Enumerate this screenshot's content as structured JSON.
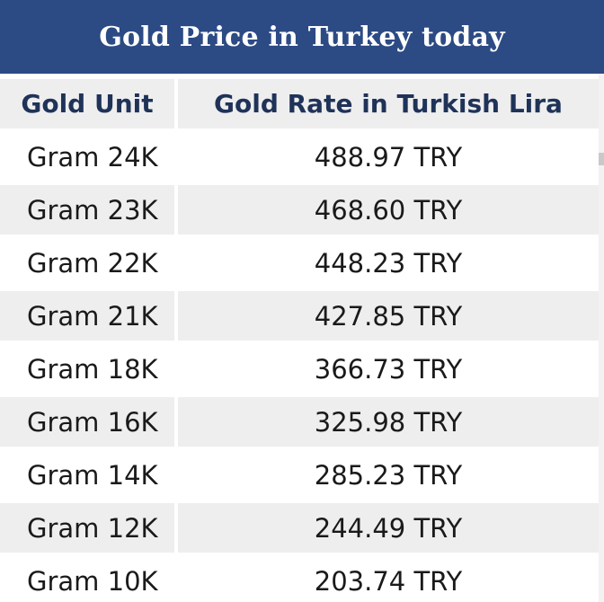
{
  "title": "Gold Price in Turkey today",
  "table": {
    "headers": [
      "Gold Unit",
      "Gold Rate in Turkish Lira"
    ],
    "rows": [
      [
        "Gram 24K",
        "488.97 TRY"
      ],
      [
        "Gram 23K",
        "468.60 TRY"
      ],
      [
        "Gram 22K",
        "448.23 TRY"
      ],
      [
        "Gram 21K",
        "427.85 TRY"
      ],
      [
        "Gram 18K",
        "366.73 TRY"
      ],
      [
        "Gram 16K",
        "325.98 TRY"
      ],
      [
        "Gram 14K",
        "285.23 TRY"
      ],
      [
        "Gram 12K",
        "244.49 TRY"
      ],
      [
        "Gram 10K",
        "203.74 TRY"
      ]
    ]
  },
  "colors": {
    "header_bar": "#2c4a84",
    "header_text": "#1f3359",
    "stripe": "#eeeeee"
  }
}
